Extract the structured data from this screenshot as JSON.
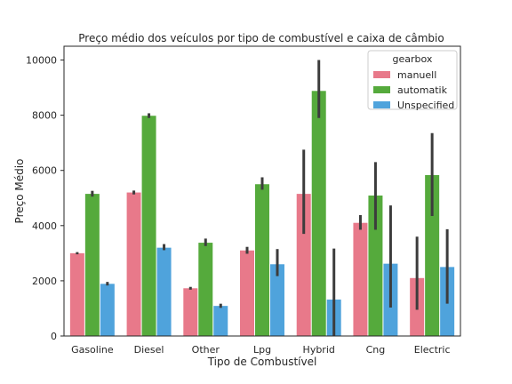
{
  "chart_data": {
    "type": "bar",
    "title": "Preço médio dos veículos por tipo de combustível e caixa de câmbio",
    "xlabel": "Tipo de Combustível",
    "ylabel": "Preço Médio",
    "categories": [
      "Gasoline",
      "Diesel",
      "Other",
      "Lpg",
      "Hybrid",
      "Cng",
      "Electric"
    ],
    "ylim": [
      0,
      10500
    ],
    "yticks": [
      0,
      2000,
      4000,
      6000,
      8000,
      10000
    ],
    "grid": false,
    "legend": {
      "title": "gearbox",
      "placement": "top-right"
    },
    "series": [
      {
        "name": "manuell",
        "color": "#e8798a",
        "values": [
          3000,
          5200,
          1730,
          3100,
          5150,
          4100,
          2100
        ],
        "error_low": [
          2960,
          5130,
          1680,
          2980,
          3700,
          3850,
          950
        ],
        "error_high": [
          3040,
          5270,
          1780,
          3230,
          6750,
          4380,
          3600
        ]
      },
      {
        "name": "automatik",
        "color": "#55aa3c",
        "values": [
          5150,
          7980,
          3380,
          5500,
          8880,
          5090,
          5830
        ],
        "error_low": [
          5050,
          7900,
          3260,
          5300,
          7900,
          3850,
          4350
        ],
        "error_high": [
          5260,
          8070,
          3530,
          5750,
          10000,
          6300,
          7350
        ]
      },
      {
        "name": "Unspecified",
        "color": "#4fa3dc",
        "values": [
          1890,
          3200,
          1090,
          2600,
          1320,
          2620,
          2500
        ],
        "error_low": [
          1830,
          3110,
          1020,
          2170,
          0,
          1030,
          1170
        ],
        "error_high": [
          1960,
          3330,
          1170,
          3150,
          3170,
          4730,
          3870
        ]
      }
    ]
  }
}
